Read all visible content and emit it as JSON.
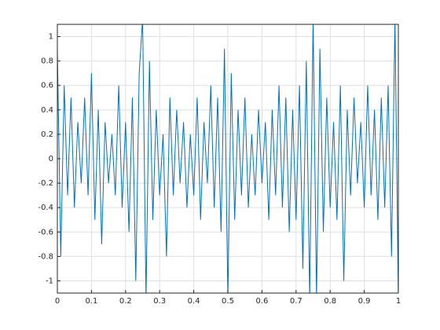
{
  "chart_data": {
    "type": "line",
    "color": "#0072bd",
    "grid": true,
    "x": [
      0,
      0.01,
      0.02,
      0.03,
      0.04,
      0.05,
      0.06,
      0.07,
      0.08,
      0.09,
      0.1,
      0.11,
      0.12,
      0.13,
      0.14,
      0.15,
      0.16,
      0.17,
      0.18,
      0.19,
      0.2,
      0.21,
      0.22,
      0.23,
      0.24,
      0.25,
      0.26,
      0.27,
      0.28,
      0.29,
      0.3,
      0.31,
      0.32,
      0.33,
      0.34,
      0.35,
      0.36,
      0.37,
      0.38,
      0.39,
      0.4,
      0.41,
      0.42,
      0.43,
      0.44,
      0.45,
      0.46,
      0.47,
      0.48,
      0.49,
      0.5,
      0.51,
      0.52,
      0.53,
      0.54,
      0.55,
      0.56,
      0.57,
      0.58,
      0.59,
      0.6,
      0.61,
      0.62,
      0.63,
      0.64,
      0.65,
      0.66,
      0.67,
      0.68,
      0.69,
      0.7,
      0.71,
      0.72,
      0.73,
      0.74,
      0.75,
      0.76,
      0.77,
      0.78,
      0.79,
      0.8,
      0.81,
      0.82,
      0.83,
      0.84,
      0.85,
      0.86,
      0.87,
      0.88,
      0.89,
      0.9,
      0.91,
      0.92,
      0.93,
      0.94,
      0.95,
      0.96,
      0.97,
      0.98,
      0.99,
      1
    ],
    "values": [
      0.9,
      -0.8,
      0.6,
      -0.3,
      0.5,
      -0.4,
      0.3,
      -0.2,
      0.5,
      -0.3,
      0.7,
      -0.5,
      0.4,
      -0.7,
      0.3,
      -0.2,
      0.2,
      -0.3,
      0.6,
      -0.4,
      0.3,
      -0.6,
      0.5,
      -1.0,
      0.7,
      1.15,
      -1.15,
      0.8,
      -0.5,
      0.4,
      -0.3,
      0.2,
      -0.8,
      0.5,
      -0.3,
      0.4,
      -0.2,
      0.3,
      -0.4,
      0.2,
      -0.3,
      0.5,
      -0.5,
      0.3,
      -0.2,
      0.6,
      -0.4,
      0.5,
      -0.6,
      0.9,
      -1.15,
      0.7,
      -0.5,
      0.4,
      -0.3,
      0.5,
      -0.4,
      0.2,
      -0.3,
      0.4,
      -0.2,
      0.3,
      -0.5,
      0.4,
      -0.3,
      0.6,
      -0.4,
      0.5,
      -0.6,
      0.4,
      -0.5,
      0.6,
      -0.9,
      0.8,
      -1.15,
      1.15,
      -1.15,
      0.9,
      -0.6,
      0.5,
      -0.4,
      0.3,
      -0.5,
      0.6,
      -1.0,
      0.4,
      -0.3,
      0.5,
      -0.2,
      0.3,
      -0.4,
      0.6,
      -0.3,
      0.4,
      -0.5,
      0.5,
      -0.4,
      0.6,
      -0.8,
      1.15,
      -1.15
    ],
    "xlim": [
      0,
      1
    ],
    "ylim": [
      -1.1,
      1.1
    ],
    "xticks": [
      0,
      0.1,
      0.2,
      0.3,
      0.4,
      0.5,
      0.6,
      0.7,
      0.8,
      0.9,
      1
    ],
    "yticks": [
      -1,
      -0.8,
      -0.6,
      -0.4,
      -0.2,
      0,
      0.2,
      0.4,
      0.6,
      0.8,
      1
    ]
  }
}
